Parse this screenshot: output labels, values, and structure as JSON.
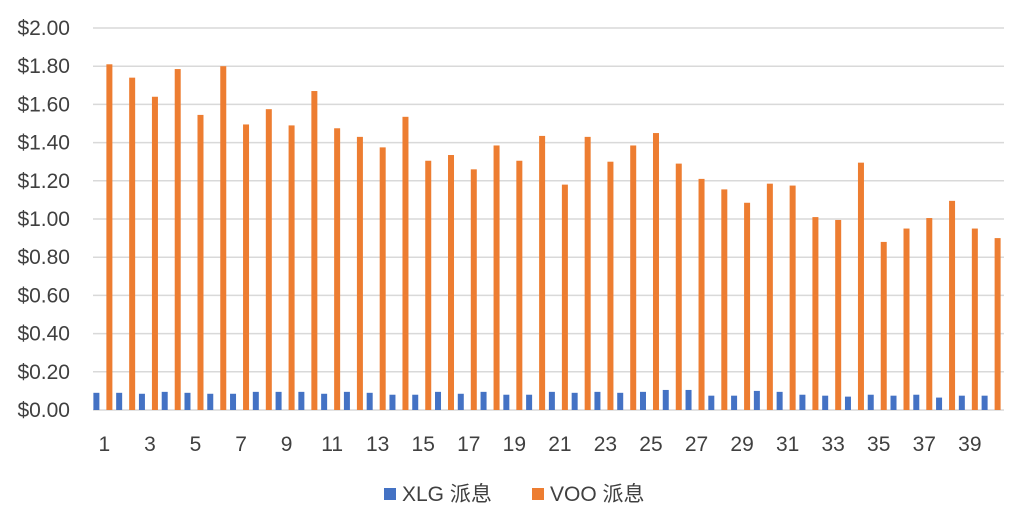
{
  "chart_data": {
    "type": "bar",
    "categories": [
      "1",
      "2",
      "3",
      "4",
      "5",
      "6",
      "7",
      "8",
      "9",
      "10",
      "11",
      "12",
      "13",
      "14",
      "15",
      "16",
      "17",
      "18",
      "19",
      "20",
      "21",
      "22",
      "23",
      "24",
      "25",
      "26",
      "27",
      "28",
      "29",
      "30",
      "31",
      "32",
      "33",
      "34",
      "35",
      "36",
      "37",
      "38",
      "39",
      "40"
    ],
    "x_tick_labels": [
      "1",
      "3",
      "5",
      "7",
      "9",
      "11",
      "13",
      "15",
      "17",
      "19",
      "21",
      "23",
      "25",
      "27",
      "29",
      "31",
      "33",
      "35",
      "37",
      "39"
    ],
    "y_tick_labels": [
      "$0.00",
      "$0.20",
      "$0.40",
      "$0.60",
      "$0.80",
      "$1.00",
      "$1.20",
      "$1.40",
      "$1.60",
      "$1.80",
      "$2.00"
    ],
    "ylim": [
      0,
      2.0
    ],
    "grid": true,
    "legend_position": "bottom",
    "series": [
      {
        "name": "XLG 派息",
        "color": "#4472c4",
        "values": [
          0.09,
          0.09,
          0.085,
          0.095,
          0.09,
          0.085,
          0.085,
          0.095,
          0.095,
          0.095,
          0.085,
          0.095,
          0.09,
          0.08,
          0.08,
          0.095,
          0.085,
          0.095,
          0.08,
          0.08,
          0.095,
          0.09,
          0.095,
          0.09,
          0.095,
          0.105,
          0.105,
          0.075,
          0.075,
          0.1,
          0.095,
          0.08,
          0.075,
          0.07,
          0.08,
          0.075,
          0.08,
          0.065,
          0.075,
          0.075
        ]
      },
      {
        "name": "VOO 派息",
        "color": "#ed7d31",
        "values": [
          1.81,
          1.74,
          1.64,
          1.785,
          1.545,
          1.8,
          1.495,
          1.575,
          1.49,
          1.67,
          1.475,
          1.43,
          1.375,
          1.535,
          1.305,
          1.335,
          1.26,
          1.385,
          1.305,
          1.435,
          1.18,
          1.43,
          1.3,
          1.385,
          1.45,
          1.29,
          1.21,
          1.155,
          1.085,
          1.185,
          1.175,
          1.01,
          0.995,
          1.295,
          0.88,
          0.95,
          1.005,
          1.095,
          0.95,
          0.9
        ]
      }
    ]
  }
}
